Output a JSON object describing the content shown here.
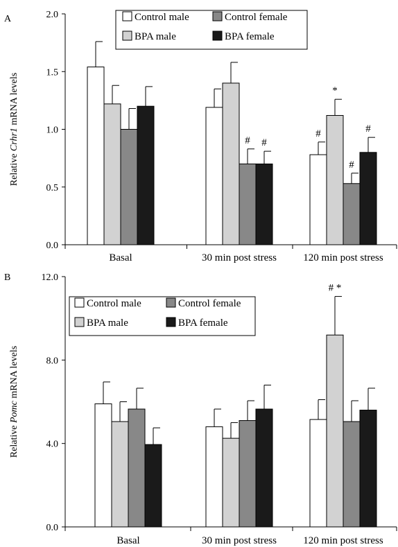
{
  "chart_data": [
    {
      "panel": "A",
      "type": "bar",
      "ylabel_prefix": "Relative ",
      "ylabel_gene": "Crhr1",
      "ylabel_suffix": " mRNA levels",
      "ylim": [
        0,
        2.0
      ],
      "yticks": [
        "0.0",
        "0.5",
        "1.0",
        "1.5",
        "2.0"
      ],
      "ytick_values": [
        0,
        0.5,
        1.0,
        1.5,
        2.0
      ],
      "categories": [
        "Basal",
        "30 min post stress",
        "120 min post stress"
      ],
      "series": [
        {
          "name": "Control male",
          "color": "#ffffff",
          "values": [
            1.54,
            1.19,
            0.78
          ],
          "errors": [
            0.22,
            0.16,
            0.11
          ]
        },
        {
          "name": "BPA male",
          "color": "#d2d2d2",
          "values": [
            1.22,
            1.4,
            1.12
          ],
          "errors": [
            0.16,
            0.18,
            0.14
          ]
        },
        {
          "name": "Control female",
          "color": "#888888",
          "values": [
            1.0,
            0.7,
            0.53
          ],
          "errors": [
            0.18,
            0.13,
            0.09
          ]
        },
        {
          "name": "BPA female",
          "color": "#1a1a1a",
          "values": [
            1.2,
            0.7,
            0.8
          ],
          "errors": [
            0.17,
            0.11,
            0.13
          ]
        }
      ],
      "annotations": [
        {
          "category": 1,
          "series": 2,
          "text": "#"
        },
        {
          "category": 1,
          "series": 3,
          "text": "#"
        },
        {
          "category": 2,
          "series": 0,
          "text": "#"
        },
        {
          "category": 2,
          "series": 1,
          "text": "*"
        },
        {
          "category": 2,
          "series": 2,
          "text": "#"
        },
        {
          "category": 2,
          "series": 3,
          "text": "#"
        }
      ],
      "legend": {
        "placement": "top-center",
        "entries": [
          "Control male",
          "Control female",
          "BPA male",
          "BPA female"
        ]
      }
    },
    {
      "panel": "B",
      "type": "bar",
      "ylabel_prefix": "Relative ",
      "ylabel_gene": "Pomc",
      "ylabel_suffix": " mRNA levels",
      "ylim": [
        0,
        12.0
      ],
      "yticks": [
        "0.0",
        "4.0",
        "8.0",
        "12.0"
      ],
      "ytick_values": [
        0,
        4.0,
        8.0,
        12.0
      ],
      "categories": [
        "Basal",
        "30 min post stress",
        "120 min post stress"
      ],
      "series": [
        {
          "name": "Control male",
          "color": "#ffffff",
          "values": [
            5.9,
            4.8,
            5.15
          ],
          "errors": [
            1.05,
            0.85,
            0.95
          ]
        },
        {
          "name": "BPA male",
          "color": "#d2d2d2",
          "values": [
            5.05,
            4.25,
            9.2
          ],
          "errors": [
            0.95,
            0.75,
            1.85
          ]
        },
        {
          "name": "Control female",
          "color": "#888888",
          "values": [
            5.65,
            5.1,
            5.05
          ],
          "errors": [
            1.0,
            0.95,
            1.0
          ]
        },
        {
          "name": "BPA female",
          "color": "#1a1a1a",
          "values": [
            3.95,
            5.65,
            5.6
          ],
          "errors": [
            0.8,
            1.15,
            1.05
          ]
        }
      ],
      "annotations": [
        {
          "category": 2,
          "series": 1,
          "text": "# *"
        }
      ],
      "legend": {
        "placement": "top-left",
        "entries": [
          "Control male",
          "Control female",
          "BPA male",
          "BPA female"
        ]
      }
    }
  ]
}
